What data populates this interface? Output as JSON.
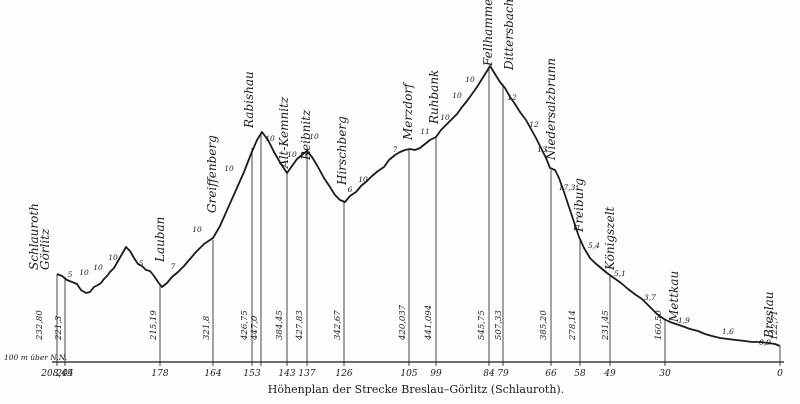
{
  "caption": "Höhenplan der Strecke Breslau–Görlitz (Schlauroth).",
  "datum_label": "100 m über N.N.",
  "stations": [
    {
      "name": "Schlauroth",
      "km": "208,45",
      "elev": "232,80"
    },
    {
      "name": "Görlitz",
      "km": "204",
      "elev": "221,3"
    },
    {
      "name": "Lauban",
      "km": "178",
      "elev": "215,19"
    },
    {
      "name": "Greiffenberg",
      "km": "164",
      "elev": "321,8"
    },
    {
      "name": "Rabishau",
      "km": "153",
      "elev": "426,75"
    },
    {
      "name": "",
      "km": "",
      "elev": "447,0"
    },
    {
      "name": "Alt-Kemnitz",
      "km": "143",
      "elev": "384,45"
    },
    {
      "name": "Reibnitz",
      "km": "137",
      "elev": "427,83"
    },
    {
      "name": "Hirschberg",
      "km": "126",
      "elev": "342,67"
    },
    {
      "name": "Merzdorf",
      "km": "105",
      "elev": "420,037"
    },
    {
      "name": "Ruhbank",
      "km": "99",
      "elev": "441,094"
    },
    {
      "name": "Fellhammer",
      "km": "84",
      "elev": "545,75"
    },
    {
      "name": "Dittersbach",
      "km": "79",
      "elev": "507,33"
    },
    {
      "name": "Niedersalzbrunn",
      "km": "66",
      "elev": "385,20"
    },
    {
      "name": "Freiburg",
      "km": "58",
      "elev": "278,14"
    },
    {
      "name": "Königszelt",
      "km": "49",
      "elev": "231,45"
    },
    {
      "name": "Mettkau",
      "km": "30",
      "elev": "160,50"
    },
    {
      "name": "Breslau",
      "km": "0",
      "elev": "122,71"
    }
  ],
  "gradients": [
    "5",
    "10",
    "10",
    "10",
    "5",
    "7",
    "10",
    "10",
    "10",
    "10",
    "10",
    "6",
    "10",
    "7",
    "11",
    "10",
    "10",
    "10",
    "12",
    "12",
    "13",
    "17,3",
    "5,4",
    "5,1",
    "3,7",
    "1,9",
    "1,6",
    "0,9"
  ]
}
